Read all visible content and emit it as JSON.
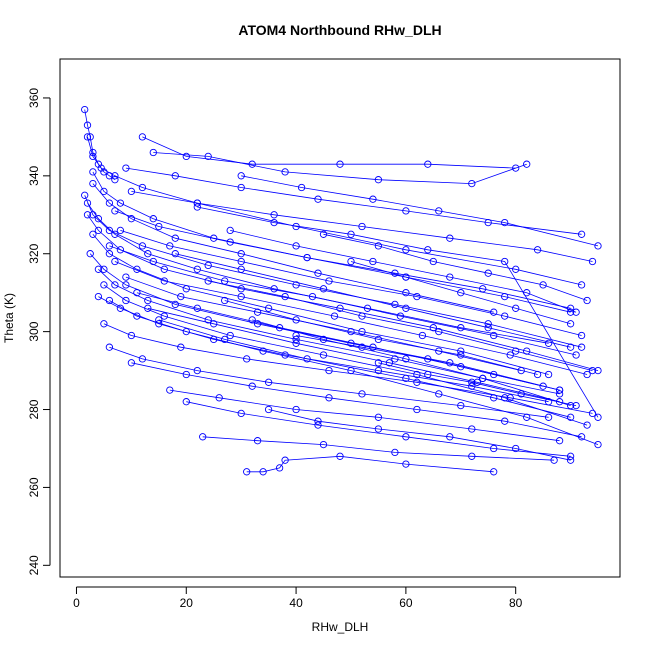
{
  "chart_data": {
    "type": "line",
    "title": "ATOM4 Northbound RHw_DLH",
    "xlabel": "RHw_DLH",
    "ylabel": "Theta (K)",
    "xlim": [
      -3,
      99
    ],
    "ylim": [
      237,
      370
    ],
    "x_ticks": [
      0,
      20,
      40,
      60,
      80
    ],
    "y_ticks": [
      240,
      260,
      280,
      300,
      320,
      340,
      360
    ],
    "marker": "open-circle",
    "line_color": "#0000ff",
    "grid": false,
    "legend": "none",
    "series": [
      {
        "x": [
          1.5,
          2.0,
          2.5,
          3.0,
          4.0,
          5.0,
          6.0,
          7.0
        ],
        "y": [
          357,
          353,
          350,
          346,
          343,
          341,
          340,
          339
        ]
      },
      {
        "x": [
          2.0,
          3.0,
          4.5,
          7.0,
          12.0,
          22.0,
          40.0,
          60.0,
          80.0,
          92.0
        ],
        "y": [
          350,
          345,
          342,
          340,
          337,
          333,
          327,
          321,
          316,
          312
        ]
      },
      {
        "x": [
          3.0,
          5.0,
          8.0,
          14.0,
          25.0,
          42.0,
          60.0,
          78.0,
          90.0
        ],
        "y": [
          341,
          336,
          333,
          329,
          324,
          319,
          314,
          309,
          305
        ]
      },
      {
        "x": [
          1.5,
          3.0,
          6.0,
          12.0,
          24.0,
          40.0,
          58.0,
          75.0,
          92.0
        ],
        "y": [
          335,
          330,
          326,
          322,
          317,
          312,
          307,
          302,
          296
        ]
      },
      {
        "x": [
          2.0,
          4.0,
          8.0,
          16.0,
          30.0,
          48.0,
          65.0,
          82.0,
          95.0
        ],
        "y": [
          330,
          326,
          321,
          316,
          311,
          306,
          301,
          295,
          290
        ]
      },
      {
        "x": [
          3.0,
          6.0,
          11.0,
          20.0,
          35.0,
          52.0,
          70.0,
          86.0
        ],
        "y": [
          325,
          320,
          316,
          311,
          306,
          300,
          295,
          289
        ]
      },
      {
        "x": [
          2.5,
          5.0,
          9.0,
          18.0,
          33.0,
          50.0,
          68.0,
          88.0
        ],
        "y": [
          320,
          316,
          312,
          307,
          302,
          297,
          292,
          285
        ]
      },
      {
        "x": [
          4.0,
          7.0,
          13.0,
          24.0,
          40.0,
          58.0,
          74.0,
          90.0
        ],
        "y": [
          316,
          312,
          308,
          303,
          298,
          293,
          288,
          281
        ]
      },
      {
        "x": [
          5.0,
          9.0,
          16.0,
          28.0,
          45.0,
          62.0,
          78.0,
          93.0
        ],
        "y": [
          312,
          308,
          304,
          299,
          294,
          289,
          283,
          276
        ]
      },
      {
        "x": [
          6.0,
          11.0,
          20.0,
          34.0,
          50.0,
          66.0,
          82.0,
          95.0
        ],
        "y": [
          308,
          304,
          300,
          295,
          290,
          284,
          278,
          271
        ]
      },
      {
        "x": [
          12.0,
          20.0,
          32.0,
          48.0,
          64.0,
          80.0
        ],
        "y": [
          350,
          345,
          343,
          343,
          343,
          342
        ]
      },
      {
        "x": [
          14.0,
          24.0,
          38.0,
          55.0,
          72.0,
          82.0
        ],
        "y": [
          346,
          345,
          341,
          339,
          338,
          343
        ]
      },
      {
        "x": [
          9.0,
          18.0,
          30.0,
          44.0,
          60.0,
          75.0,
          92.0
        ],
        "y": [
          342,
          340,
          337,
          334,
          331,
          328,
          325
        ]
      },
      {
        "x": [
          10.0,
          22.0,
          36.0,
          52.0,
          68.0,
          84.0,
          94.0
        ],
        "y": [
          336,
          333,
          330,
          327,
          324,
          321,
          318
        ]
      },
      {
        "x": [
          7.0,
          15.0,
          28.0,
          42.0,
          58.0,
          74.0,
          90.0
        ],
        "y": [
          331,
          327,
          323,
          319,
          315,
          311,
          306
        ]
      },
      {
        "x": [
          8.0,
          17.0,
          30.0,
          46.0,
          62.0,
          78.0,
          92.0
        ],
        "y": [
          326,
          322,
          318,
          313,
          309,
          304,
          299
        ]
      },
      {
        "x": [
          6.0,
          14.0,
          27.0,
          43.0,
          59.0,
          76.0,
          91.0
        ],
        "y": [
          322,
          318,
          313,
          309,
          304,
          299,
          294
        ]
      },
      {
        "x": [
          7.0,
          16.0,
          30.0,
          47.0,
          63.0,
          79.0,
          93.0
        ],
        "y": [
          318,
          313,
          309,
          304,
          299,
          294,
          289
        ]
      },
      {
        "x": [
          9.0,
          19.0,
          33.0,
          50.0,
          66.0,
          81.0
        ],
        "y": [
          314,
          309,
          305,
          300,
          295,
          290
        ]
      },
      {
        "x": [
          11.0,
          22.0,
          37.0,
          54.0,
          70.0,
          85.0
        ],
        "y": [
          310,
          306,
          301,
          296,
          291,
          286
        ]
      },
      {
        "x": [
          13.0,
          25.0,
          40.0,
          57.0,
          73.0,
          88.0
        ],
        "y": [
          306,
          302,
          297,
          292,
          287,
          282
        ]
      },
      {
        "x": [
          15.0,
          27.0,
          42.0,
          60.0,
          76.0,
          90.0
        ],
        "y": [
          303,
          298,
          293,
          288,
          283,
          278
        ]
      },
      {
        "x": [
          6.0,
          12.0,
          22.0,
          35.0,
          52.0,
          70.0,
          86.0
        ],
        "y": [
          296,
          293,
          290,
          287,
          284,
          281,
          278
        ]
      },
      {
        "x": [
          10.0,
          20.0,
          32.0,
          46.0,
          62.0,
          78.0,
          92.0
        ],
        "y": [
          292,
          289,
          286,
          283,
          280,
          277,
          273
        ]
      },
      {
        "x": [
          17.0,
          26.0,
          40.0,
          55.0,
          72.0,
          88.0
        ],
        "y": [
          285,
          283,
          280,
          278,
          275,
          272
        ]
      },
      {
        "x": [
          20.0,
          30.0,
          44.0,
          60.0,
          76.0,
          90.0
        ],
        "y": [
          282,
          279,
          276,
          273,
          270,
          268
        ]
      },
      {
        "x": [
          23.0,
          33.0,
          45.0,
          58.0,
          72.0,
          87.0
        ],
        "y": [
          273,
          272,
          271,
          269,
          268,
          267
        ]
      },
      {
        "x": [
          31.0,
          34.0,
          37.0,
          38.0,
          48.0,
          60.0,
          76.0
        ],
        "y": [
          264,
          264,
          265,
          267,
          268,
          266,
          264
        ]
      },
      {
        "x": [
          35.0,
          44.0,
          55.0,
          68.0,
          80.0,
          90.0
        ],
        "y": [
          280,
          277,
          275,
          273,
          270,
          267
        ]
      },
      {
        "x": [
          30.0,
          41.0,
          54.0,
          66.0,
          78.0,
          95.0
        ],
        "y": [
          340,
          337,
          334,
          331,
          328,
          322
        ]
      },
      {
        "x": [
          22.0,
          36.0,
          50.0,
          64.0,
          78.0,
          95.0
        ],
        "y": [
          332,
          328,
          325,
          321,
          318,
          278
        ]
      },
      {
        "x": [
          28.0,
          40.0,
          54.0,
          68.0,
          82.0,
          91.0
        ],
        "y": [
          326,
          322,
          318,
          314,
          310,
          305
        ]
      },
      {
        "x": [
          18.0,
          30.0,
          45.0,
          60.0,
          75.0,
          90.0
        ],
        "y": [
          320,
          316,
          311,
          306,
          301,
          296
        ]
      },
      {
        "x": [
          24.0,
          38.0,
          52.0,
          66.0,
          80.0,
          94.0
        ],
        "y": [
          313,
          309,
          304,
          300,
          295,
          290
        ]
      },
      {
        "x": [
          27.0,
          40.0,
          55.0,
          70.0,
          84.0
        ],
        "y": [
          308,
          303,
          298,
          294,
          289
        ]
      },
      {
        "x": [
          32.0,
          45.0,
          60.0,
          74.0,
          88.0
        ],
        "y": [
          303,
          298,
          293,
          288,
          284
        ]
      },
      {
        "x": [
          4.0,
          8.0,
          15.0,
          25.0,
          38.0,
          55.0,
          72.0,
          86.0
        ],
        "y": [
          309,
          306,
          302,
          298,
          294,
          290,
          286,
          282
        ]
      },
      {
        "x": [
          5.0,
          10.0,
          19.0,
          31.0,
          46.0,
          62.0,
          79.0,
          94.0
        ],
        "y": [
          302,
          299,
          296,
          293,
          290,
          287,
          283,
          279
        ]
      },
      {
        "x": [
          3.0,
          6.0,
          10.0,
          18.0,
          30.0,
          44.0,
          60.0,
          76.0
        ],
        "y": [
          338,
          333,
          329,
          324,
          320,
          315,
          310,
          305
        ]
      },
      {
        "x": [
          2.0,
          4.0,
          7.0,
          13.0,
          22.0,
          36.0,
          53.0,
          70.0,
          86.0
        ],
        "y": [
          333,
          329,
          325,
          320,
          316,
          311,
          306,
          301,
          297
        ]
      },
      {
        "x": [
          45.0,
          55.0,
          65.0,
          75.0,
          85.0,
          93.0
        ],
        "y": [
          325,
          322,
          318,
          315,
          312,
          308
        ]
      },
      {
        "x": [
          50.0,
          60.0,
          70.0,
          80.0,
          90.0
        ],
        "y": [
          318,
          314,
          310,
          306,
          302
        ]
      },
      {
        "x": [
          40.0,
          52.0,
          64.0,
          76.0,
          88.0
        ],
        "y": [
          299,
          296,
          293,
          289,
          285
        ]
      },
      {
        "x": [
          55.0,
          64.0,
          72.0,
          81.0,
          91.0
        ],
        "y": [
          292,
          289,
          287,
          284,
          281
        ]
      }
    ]
  }
}
